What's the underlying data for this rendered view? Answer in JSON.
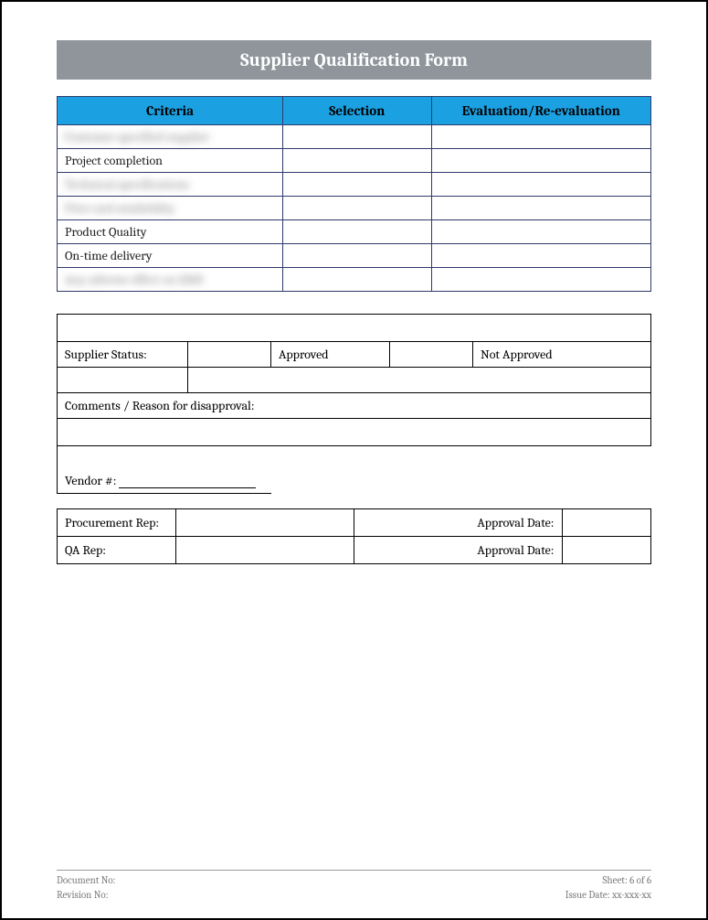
{
  "title": "Supplier Qualification Form",
  "criteria_table": {
    "headers": [
      "Criteria",
      "Selection",
      "Evaluation/Re-evaluation"
    ],
    "rows": [
      {
        "criteria": "Customer specified supplier",
        "selection": "",
        "evaluation": "",
        "blurred": true
      },
      {
        "criteria": "Project completion",
        "selection": "",
        "evaluation": "",
        "blurred": false
      },
      {
        "criteria": "Technical specifications",
        "selection": "",
        "evaluation": "",
        "blurred": true
      },
      {
        "criteria": "Price and availability",
        "selection": "",
        "evaluation": "",
        "blurred": true
      },
      {
        "criteria": "Product Quality",
        "selection": "",
        "evaluation": "",
        "blurred": false
      },
      {
        "criteria": "On-time delivery",
        "selection": "",
        "evaluation": "",
        "blurred": false
      },
      {
        "criteria": "Any adverse effect on QMS",
        "selection": "",
        "evaluation": "",
        "blurred": true
      }
    ]
  },
  "status_section": {
    "supplier_status_label": "Supplier Status:",
    "approved_label": "Approved",
    "not_approved_label": "Not Approved",
    "comments_label": "Comments / Reason for disapproval:",
    "vendor_label": "Vendor #:"
  },
  "signoff": {
    "procurement_label": "Procurement Rep:",
    "qa_label": "QA Rep:",
    "approval_date_label": "Approval Date:"
  },
  "footer": {
    "document_no_label": "Document No:",
    "revision_no_label": "Revision No:",
    "sheet_label": "Sheet: 6 of 6",
    "issue_date_label": "Issue Date: xx-xxx-xx"
  },
  "colors": {
    "title_bg": "#8f959b",
    "title_fg": "#ffffff",
    "header_bg": "#1ba1e2",
    "border_color": "#2f3a6a",
    "page_border": "#000000",
    "footer_text": "#7a7a7a"
  }
}
